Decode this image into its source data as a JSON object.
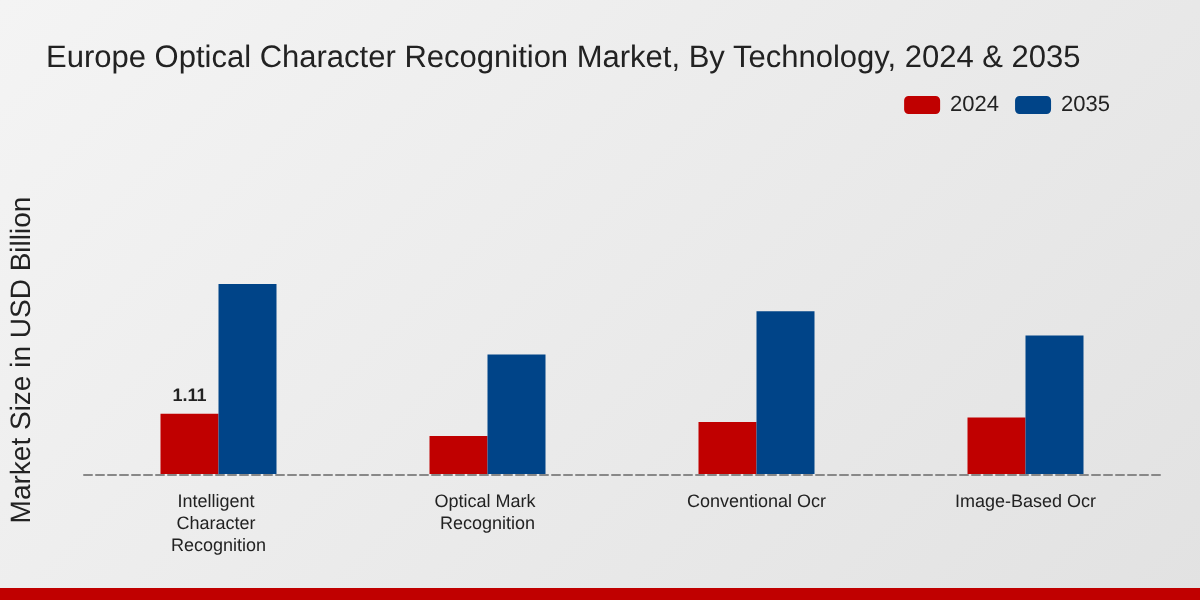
{
  "chart_data": {
    "type": "bar",
    "title": "Europe Optical Character Recognition Market, By Technology, 2024 & 2035",
    "ylabel": "Market Size in USD Billion",
    "categories": [
      "Intelligent Character Recognition",
      "Optical Mark Recognition",
      "Conventional Ocr",
      "Image-Based Ocr"
    ],
    "ylim": [
      0,
      3.5
    ],
    "tick_labels": "x",
    "legend": "top right",
    "series": [
      {
        "name": "2024",
        "color": "#c00000",
        "values": [
          1.11,
          0.7,
          0.96,
          1.04
        ],
        "value_labels": [
          "1.11",
          null,
          null,
          null
        ]
      },
      {
        "name": "2035",
        "color": "#004488",
        "values": [
          3.5,
          2.2,
          3.0,
          2.55
        ]
      }
    ]
  }
}
